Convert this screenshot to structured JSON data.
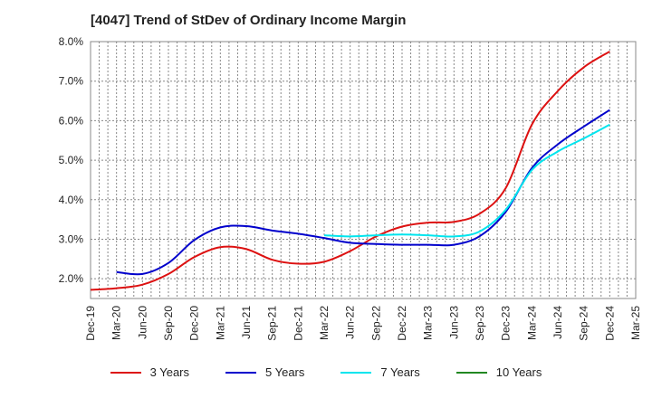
{
  "chart_data": {
    "type": "line",
    "title": "[4047]  Trend of StDev of Ordinary Income Margin",
    "xlabel": "",
    "ylabel": "",
    "x_ticks": [
      "Dec-19",
      "Mar-20",
      "Jun-20",
      "Sep-20",
      "Dec-20",
      "Mar-21",
      "Jun-21",
      "Sep-21",
      "Dec-21",
      "Mar-22",
      "Jun-22",
      "Sep-22",
      "Dec-22",
      "Mar-23",
      "Jun-23",
      "Sep-23",
      "Dec-23",
      "Mar-24",
      "Jun-24",
      "Sep-24",
      "Dec-24",
      "Mar-25"
    ],
    "y_ticks": [
      "2.0%",
      "3.0%",
      "4.0%",
      "5.0%",
      "6.0%",
      "7.0%",
      "8.0%"
    ],
    "ylim": [
      1.5,
      8.0
    ],
    "grid": true,
    "legend_position": "bottom",
    "series": [
      {
        "name": "3 Years",
        "color": "#dd1111",
        "points": [
          [
            "Dec-19",
            1.72
          ],
          [
            "Mar-20",
            1.76
          ],
          [
            "Jun-20",
            1.85
          ],
          [
            "Sep-20",
            2.12
          ],
          [
            "Dec-20",
            2.55
          ],
          [
            "Mar-21",
            2.8
          ],
          [
            "Jun-21",
            2.75
          ],
          [
            "Sep-21",
            2.48
          ],
          [
            "Dec-21",
            2.38
          ],
          [
            "Mar-22",
            2.43
          ],
          [
            "Jun-22",
            2.7
          ],
          [
            "Sep-22",
            3.07
          ],
          [
            "Dec-22",
            3.32
          ],
          [
            "Mar-23",
            3.42
          ],
          [
            "Jun-23",
            3.44
          ],
          [
            "Sep-23",
            3.65
          ],
          [
            "Dec-23",
            4.3
          ],
          [
            "Mar-24",
            5.9
          ],
          [
            "Jun-24",
            6.75
          ],
          [
            "Sep-24",
            7.35
          ],
          [
            "Dec-24",
            7.75
          ]
        ]
      },
      {
        "name": "5 Years",
        "color": "#0000cc",
        "points": [
          [
            "Mar-20",
            2.17
          ],
          [
            "Jun-20",
            2.12
          ],
          [
            "Sep-20",
            2.4
          ],
          [
            "Dec-20",
            2.98
          ],
          [
            "Mar-21",
            3.3
          ],
          [
            "Jun-21",
            3.33
          ],
          [
            "Sep-21",
            3.22
          ],
          [
            "Dec-21",
            3.14
          ],
          [
            "Mar-22",
            3.03
          ],
          [
            "Jun-22",
            2.91
          ],
          [
            "Sep-22",
            2.88
          ],
          [
            "Dec-22",
            2.86
          ],
          [
            "Mar-23",
            2.86
          ],
          [
            "Jun-23",
            2.86
          ],
          [
            "Sep-23",
            3.08
          ],
          [
            "Dec-23",
            3.7
          ],
          [
            "Mar-24",
            4.8
          ],
          [
            "Jun-24",
            5.4
          ],
          [
            "Sep-24",
            5.85
          ],
          [
            "Dec-24",
            6.27
          ]
        ]
      },
      {
        "name": "7 Years",
        "color": "#00e5ee",
        "points": [
          [
            "Mar-22",
            3.1
          ],
          [
            "Jun-22",
            3.07
          ],
          [
            "Sep-22",
            3.1
          ],
          [
            "Dec-22",
            3.12
          ],
          [
            "Mar-23",
            3.1
          ],
          [
            "Jun-23",
            3.07
          ],
          [
            "Sep-23",
            3.2
          ],
          [
            "Dec-23",
            3.75
          ],
          [
            "Mar-24",
            4.75
          ],
          [
            "Jun-24",
            5.22
          ],
          [
            "Sep-24",
            5.55
          ],
          [
            "Dec-24",
            5.9
          ]
        ]
      },
      {
        "name": "10 Years",
        "color": "#228822",
        "points": []
      }
    ]
  }
}
